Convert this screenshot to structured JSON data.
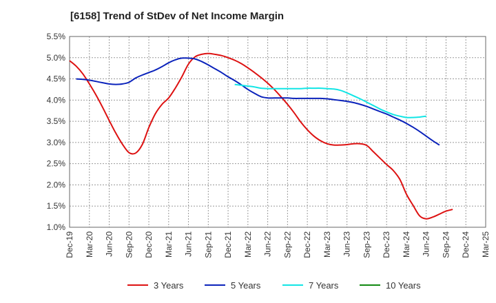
{
  "chart_data": {
    "type": "line",
    "title": "[6158]  Trend of StDev of Net Income Margin",
    "xlabel": "",
    "ylabel": "",
    "x_ticks": [
      "Dec-19",
      "Mar-20",
      "Jun-20",
      "Sep-20",
      "Dec-20",
      "Mar-21",
      "Jun-21",
      "Sep-21",
      "Dec-21",
      "Mar-22",
      "Jun-22",
      "Sep-22",
      "Dec-22",
      "Mar-23",
      "Jun-23",
      "Sep-23",
      "Dec-23",
      "Mar-24",
      "Jun-24",
      "Sep-24",
      "Dec-24",
      "Mar-25"
    ],
    "y_ticks": [
      "1.0%",
      "1.5%",
      "2.0%",
      "2.5%",
      "3.0%",
      "3.5%",
      "4.0%",
      "4.5%",
      "5.0%",
      "5.5%"
    ],
    "ylim": [
      1.0,
      5.5
    ],
    "grid": true,
    "legend_position": "bottom",
    "series": [
      {
        "name": "3 Years",
        "color": "#dd1111",
        "points": [
          [
            "Dec-19",
            4.93
          ],
          [
            "Jan-20",
            4.8
          ],
          [
            "Feb-20",
            4.62
          ],
          [
            "Mar-20",
            4.38
          ],
          [
            "Apr-20",
            4.12
          ],
          [
            "May-20",
            3.83
          ],
          [
            "Jun-20",
            3.52
          ],
          [
            "Jul-20",
            3.22
          ],
          [
            "Aug-20",
            2.96
          ],
          [
            "Sep-20",
            2.76
          ],
          [
            "Oct-20",
            2.75
          ],
          [
            "Nov-20",
            2.95
          ],
          [
            "Dec-20",
            3.35
          ],
          [
            "Jan-21",
            3.68
          ],
          [
            "Feb-21",
            3.9
          ],
          [
            "Mar-21",
            4.05
          ],
          [
            "Apr-21",
            4.28
          ],
          [
            "May-21",
            4.55
          ],
          [
            "Jun-21",
            4.85
          ],
          [
            "Jul-21",
            5.02
          ],
          [
            "Aug-21",
            5.08
          ],
          [
            "Sep-21",
            5.1
          ],
          [
            "Oct-21",
            5.08
          ],
          [
            "Nov-21",
            5.05
          ],
          [
            "Dec-21",
            5.0
          ],
          [
            "Jan-22",
            4.94
          ],
          [
            "Feb-22",
            4.86
          ],
          [
            "Mar-22",
            4.76
          ],
          [
            "Apr-22",
            4.65
          ],
          [
            "May-22",
            4.53
          ],
          [
            "Jun-22",
            4.4
          ],
          [
            "Jul-22",
            4.25
          ],
          [
            "Aug-22",
            4.08
          ],
          [
            "Sep-22",
            3.9
          ],
          [
            "Oct-22",
            3.7
          ],
          [
            "Nov-22",
            3.48
          ],
          [
            "Dec-22",
            3.3
          ],
          [
            "Jan-23",
            3.15
          ],
          [
            "Feb-23",
            3.04
          ],
          [
            "Mar-23",
            2.97
          ],
          [
            "Apr-23",
            2.94
          ],
          [
            "May-23",
            2.94
          ],
          [
            "Jun-23",
            2.95
          ],
          [
            "Jul-23",
            2.97
          ],
          [
            "Aug-23",
            2.97
          ],
          [
            "Sep-23",
            2.93
          ],
          [
            "Oct-23",
            2.78
          ],
          [
            "Nov-23",
            2.63
          ],
          [
            "Dec-23",
            2.48
          ],
          [
            "Jan-24",
            2.34
          ],
          [
            "Feb-24",
            2.13
          ],
          [
            "Mar-24",
            1.78
          ],
          [
            "Apr-24",
            1.52
          ],
          [
            "May-24",
            1.27
          ],
          [
            "Jun-24",
            1.2
          ],
          [
            "Jul-24",
            1.24
          ],
          [
            "Aug-24",
            1.31
          ],
          [
            "Sep-24",
            1.38
          ],
          [
            "Oct-24",
            1.42
          ]
        ]
      },
      {
        "name": "5 Years",
        "color": "#0a22bb",
        "points": [
          [
            "Jan-20",
            4.5
          ],
          [
            "Feb-20",
            4.49
          ],
          [
            "Mar-20",
            4.47
          ],
          [
            "Apr-20",
            4.44
          ],
          [
            "May-20",
            4.41
          ],
          [
            "Jun-20",
            4.38
          ],
          [
            "Jul-20",
            4.37
          ],
          [
            "Aug-20",
            4.38
          ],
          [
            "Sep-20",
            4.42
          ],
          [
            "Oct-20",
            4.52
          ],
          [
            "Nov-20",
            4.59
          ],
          [
            "Dec-20",
            4.65
          ],
          [
            "Jan-21",
            4.71
          ],
          [
            "Feb-21",
            4.79
          ],
          [
            "Mar-21",
            4.88
          ],
          [
            "Apr-21",
            4.95
          ],
          [
            "May-21",
            4.99
          ],
          [
            "Jun-21",
            4.99
          ],
          [
            "Jul-21",
            4.97
          ],
          [
            "Aug-21",
            4.91
          ],
          [
            "Sep-21",
            4.83
          ],
          [
            "Oct-21",
            4.74
          ],
          [
            "Nov-21",
            4.65
          ],
          [
            "Dec-21",
            4.55
          ],
          [
            "Jan-22",
            4.46
          ],
          [
            "Feb-22",
            4.36
          ],
          [
            "Mar-22",
            4.25
          ],
          [
            "Apr-22",
            4.16
          ],
          [
            "May-22",
            4.08
          ],
          [
            "Jun-22",
            4.05
          ],
          [
            "Jul-22",
            4.05
          ],
          [
            "Aug-22",
            4.05
          ],
          [
            "Sep-22",
            4.05
          ],
          [
            "Oct-22",
            4.04
          ],
          [
            "Nov-22",
            4.04
          ],
          [
            "Dec-22",
            4.04
          ],
          [
            "Jan-23",
            4.04
          ],
          [
            "Feb-23",
            4.04
          ],
          [
            "Mar-23",
            4.03
          ],
          [
            "Apr-23",
            4.01
          ],
          [
            "May-23",
            3.99
          ],
          [
            "Jun-23",
            3.97
          ],
          [
            "Jul-23",
            3.94
          ],
          [
            "Aug-23",
            3.9
          ],
          [
            "Sep-23",
            3.85
          ],
          [
            "Oct-23",
            3.79
          ],
          [
            "Nov-23",
            3.73
          ],
          [
            "Dec-23",
            3.67
          ],
          [
            "Jan-24",
            3.6
          ],
          [
            "Feb-24",
            3.53
          ],
          [
            "Mar-24",
            3.45
          ],
          [
            "Apr-24",
            3.36
          ],
          [
            "May-24",
            3.26
          ],
          [
            "Jun-24",
            3.15
          ],
          [
            "Jul-24",
            3.04
          ],
          [
            "Aug-24",
            2.94
          ]
        ]
      },
      {
        "name": "7 Years",
        "color": "#11e5e5",
        "points": [
          [
            "Jan-22",
            4.37
          ],
          [
            "Feb-22",
            4.35
          ],
          [
            "Mar-22",
            4.33
          ],
          [
            "Apr-22",
            4.31
          ],
          [
            "May-22",
            4.28
          ],
          [
            "Jun-22",
            4.27
          ],
          [
            "Jul-22",
            4.27
          ],
          [
            "Aug-22",
            4.27
          ],
          [
            "Sep-22",
            4.27
          ],
          [
            "Oct-22",
            4.27
          ],
          [
            "Nov-22",
            4.27
          ],
          [
            "Dec-22",
            4.28
          ],
          [
            "Jan-23",
            4.28
          ],
          [
            "Feb-23",
            4.28
          ],
          [
            "Mar-23",
            4.27
          ],
          [
            "Apr-23",
            4.26
          ],
          [
            "May-23",
            4.23
          ],
          [
            "Jun-23",
            4.17
          ],
          [
            "Jul-23",
            4.1
          ],
          [
            "Aug-23",
            4.03
          ],
          [
            "Sep-23",
            3.95
          ],
          [
            "Oct-23",
            3.87
          ],
          [
            "Nov-23",
            3.79
          ],
          [
            "Dec-23",
            3.72
          ],
          [
            "Jan-24",
            3.66
          ],
          [
            "Feb-24",
            3.62
          ],
          [
            "Mar-24",
            3.59
          ],
          [
            "Apr-24",
            3.59
          ],
          [
            "May-24",
            3.6
          ],
          [
            "Jun-24",
            3.62
          ]
        ]
      },
      {
        "name": "10 Years",
        "color": "#118811",
        "points": []
      }
    ]
  }
}
